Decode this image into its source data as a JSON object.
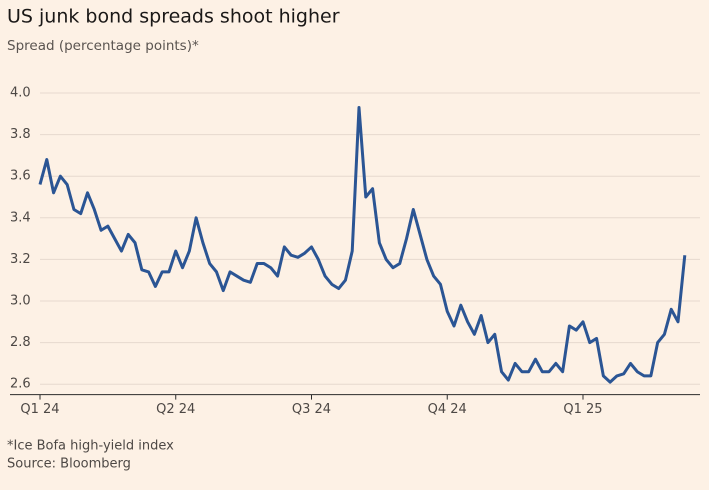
{
  "chart_data": {
    "type": "line",
    "title": "US junk bond spreads shoot higher",
    "subtitle": "Spread (percentage points)*",
    "note": "*Ice Bofa high-yield index",
    "source": "Source: Bloomberg",
    "color": "#2b5594",
    "grid": true,
    "xlim": [
      -0.2,
      4.89
    ],
    "xticks": [
      {
        "value": 0,
        "label": "Q1 24"
      },
      {
        "value": 1,
        "label": "Q2 24"
      },
      {
        "value": 2,
        "label": "Q3 24"
      },
      {
        "value": 3,
        "label": "Q4 24"
      },
      {
        "value": 4,
        "label": "Q1 25"
      }
    ],
    "ylim": [
      2.55,
      4.0
    ],
    "yticks": [
      2.6,
      2.8,
      {
        "value": 3.0,
        "label": "3.0"
      },
      3.2,
      3.4,
      3.6,
      3.8,
      {
        "value": 4.0,
        "label": "4.0"
      }
    ],
    "x": [
      0,
      0.05,
      0.1,
      0.15,
      0.2,
      0.25,
      0.3,
      0.35,
      0.4,
      0.45,
      0.5,
      0.55,
      0.6,
      0.65,
      0.7,
      0.75,
      0.8,
      0.85,
      0.9,
      0.95,
      1,
      1.05,
      1.1,
      1.15,
      1.2,
      1.25,
      1.3,
      1.35,
      1.4,
      1.45,
      1.5,
      1.55,
      1.6,
      1.65,
      1.7,
      1.75,
      1.8,
      1.85,
      1.9,
      1.95,
      2,
      2.05,
      2.1,
      2.15,
      2.2,
      2.25,
      2.3,
      2.35,
      2.4,
      2.45,
      2.5,
      2.55,
      2.6,
      2.65,
      2.7,
      2.75,
      2.8,
      2.85,
      2.9,
      2.95,
      3,
      3.05,
      3.1,
      3.15,
      3.2,
      3.25,
      3.3,
      3.35,
      3.4,
      3.45,
      3.5,
      3.55,
      3.6,
      3.65,
      3.7,
      3.75,
      3.8,
      3.85,
      3.9,
      3.95,
      4,
      4.05,
      4.1,
      4.15,
      4.2,
      4.25,
      4.3,
      4.35,
      4.4,
      4.45,
      4.5,
      4.55,
      4.6,
      4.65,
      4.7,
      4.75
    ],
    "values": [
      3.56,
      3.68,
      3.52,
      3.6,
      3.56,
      3.44,
      3.42,
      3.52,
      3.44,
      3.34,
      3.36,
      3.3,
      3.24,
      3.32,
      3.28,
      3.15,
      3.14,
      3.07,
      3.14,
      3.14,
      3.24,
      3.16,
      3.24,
      3.4,
      3.28,
      3.18,
      3.14,
      3.05,
      3.14,
      3.12,
      3.1,
      3.09,
      3.18,
      3.18,
      3.16,
      3.12,
      3.26,
      3.22,
      3.21,
      3.23,
      3.26,
      3.2,
      3.12,
      3.08,
      3.06,
      3.1,
      3.24,
      3.93,
      3.5,
      3.54,
      3.28,
      3.2,
      3.16,
      3.18,
      3.3,
      3.44,
      3.32,
      3.2,
      3.12,
      3.08,
      2.95,
      2.88,
      2.98,
      2.9,
      2.84,
      2.93,
      2.8,
      2.84,
      2.66,
      2.62,
      2.7,
      2.66,
      2.66,
      2.72,
      2.66,
      2.66,
      2.7,
      2.66,
      2.88,
      2.86,
      2.9,
      2.8,
      2.82,
      2.64,
      2.61,
      2.64,
      2.65,
      2.7,
      2.66,
      2.64,
      2.64,
      2.8,
      2.84,
      2.96,
      2.9,
      3.22
    ]
  }
}
